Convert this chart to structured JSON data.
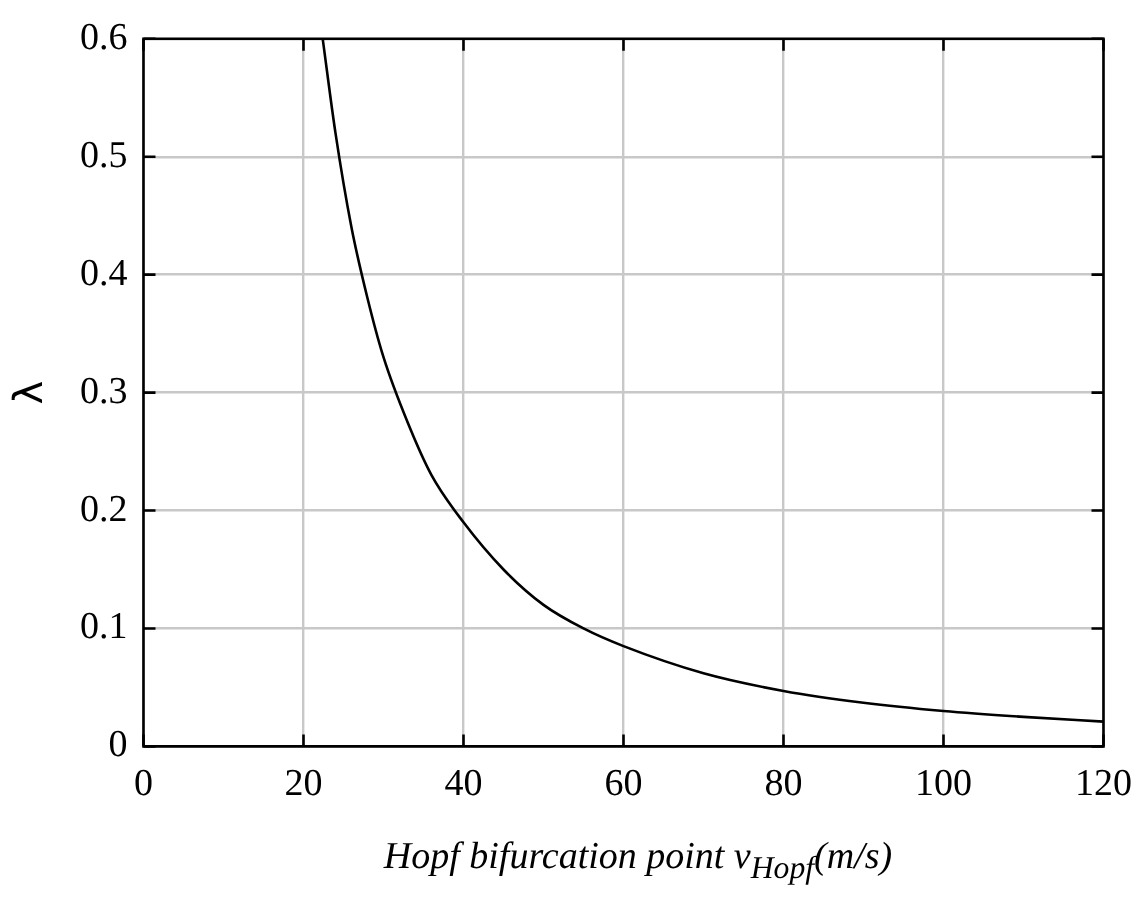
{
  "chart_data": {
    "type": "line",
    "xlabel": "Hopf bifurcation point v$_{Hopf}$(m/s)",
    "ylabel": "λ",
    "series": [
      {
        "color": "#000000",
        "x": [
          22.4,
          24,
          26,
          28,
          30,
          33,
          36,
          40,
          45,
          50,
          55,
          60,
          70,
          80,
          90,
          100,
          110,
          120
        ],
        "values": [
          0.6,
          0.52,
          0.44,
          0.38,
          0.33,
          0.275,
          0.23,
          0.19,
          0.15,
          0.12,
          0.1,
          0.085,
          0.062,
          0.047,
          0.037,
          0.03,
          0.025,
          0.021
        ]
      }
    ],
    "xlim": [
      0,
      120
    ],
    "xticks": [
      0,
      20,
      40,
      60,
      80,
      100,
      120
    ],
    "ylim": [
      0,
      0.6
    ],
    "yticks": [
      0,
      0.1,
      0.2,
      0.3,
      0.4,
      0.5,
      0.6
    ],
    "grid": true,
    "marker": "none",
    "line_style": "solid"
  }
}
